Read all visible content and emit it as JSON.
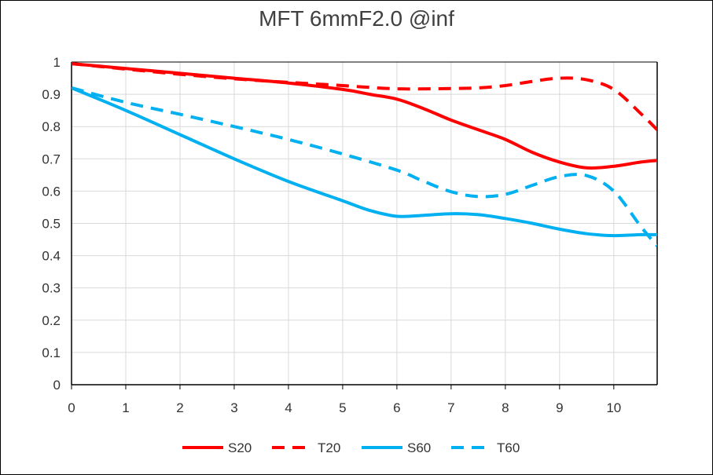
{
  "chart_data": {
    "type": "line",
    "title": "MFT  6mmF2.0 @inf",
    "xlabel": "",
    "ylabel": "",
    "xlim": [
      0,
      10.8
    ],
    "ylim": [
      0,
      1
    ],
    "x_ticks": [
      "0",
      "1",
      "2",
      "3",
      "4",
      "5",
      "6",
      "7",
      "8",
      "9",
      "10"
    ],
    "y_ticks": [
      "0",
      "0.1",
      "0.2",
      "0.3",
      "0.4",
      "0.5",
      "0.6",
      "0.7",
      "0.8",
      "0.9",
      "1"
    ],
    "grid": true,
    "legend_position": "bottom",
    "series": [
      {
        "name": "S20",
        "color": "#ff0000",
        "style": "solid",
        "x": [
          0,
          1,
          2,
          3,
          4,
          5,
          5.5,
          6,
          6.5,
          7,
          7.5,
          8,
          8.5,
          9,
          9.5,
          10,
          10.5,
          10.8
        ],
        "y": [
          0.995,
          0.98,
          0.965,
          0.95,
          0.935,
          0.915,
          0.9,
          0.885,
          0.855,
          0.82,
          0.79,
          0.76,
          0.72,
          0.69,
          0.672,
          0.677,
          0.69,
          0.695
        ]
      },
      {
        "name": "T20",
        "color": "#ff0000",
        "style": "dashed",
        "x": [
          0,
          1,
          2,
          3,
          4,
          5,
          6,
          7,
          7.5,
          8,
          8.5,
          9,
          9.5,
          10,
          10.5,
          10.8
        ],
        "y": [
          0.995,
          0.978,
          0.962,
          0.948,
          0.937,
          0.927,
          0.917,
          0.918,
          0.92,
          0.927,
          0.94,
          0.95,
          0.945,
          0.915,
          0.84,
          0.79
        ]
      },
      {
        "name": "S60",
        "color": "#00b0f0",
        "style": "solid",
        "x": [
          0,
          1,
          2,
          3,
          4,
          5,
          5.5,
          6,
          6.5,
          7,
          7.5,
          8,
          8.5,
          9,
          9.5,
          10,
          10.5,
          10.8
        ],
        "y": [
          0.92,
          0.85,
          0.775,
          0.7,
          0.63,
          0.57,
          0.54,
          0.522,
          0.525,
          0.53,
          0.527,
          0.515,
          0.5,
          0.482,
          0.468,
          0.462,
          0.465,
          0.465
        ]
      },
      {
        "name": "T60",
        "color": "#00b0f0",
        "style": "dashed",
        "x": [
          0,
          1,
          2,
          3,
          4,
          5,
          6,
          6.5,
          7,
          7.5,
          8,
          8.5,
          9,
          9.5,
          10,
          10.5,
          10.8
        ],
        "y": [
          0.92,
          0.875,
          0.838,
          0.8,
          0.76,
          0.715,
          0.665,
          0.63,
          0.598,
          0.583,
          0.59,
          0.618,
          0.645,
          0.648,
          0.6,
          0.49,
          0.43
        ]
      }
    ]
  }
}
